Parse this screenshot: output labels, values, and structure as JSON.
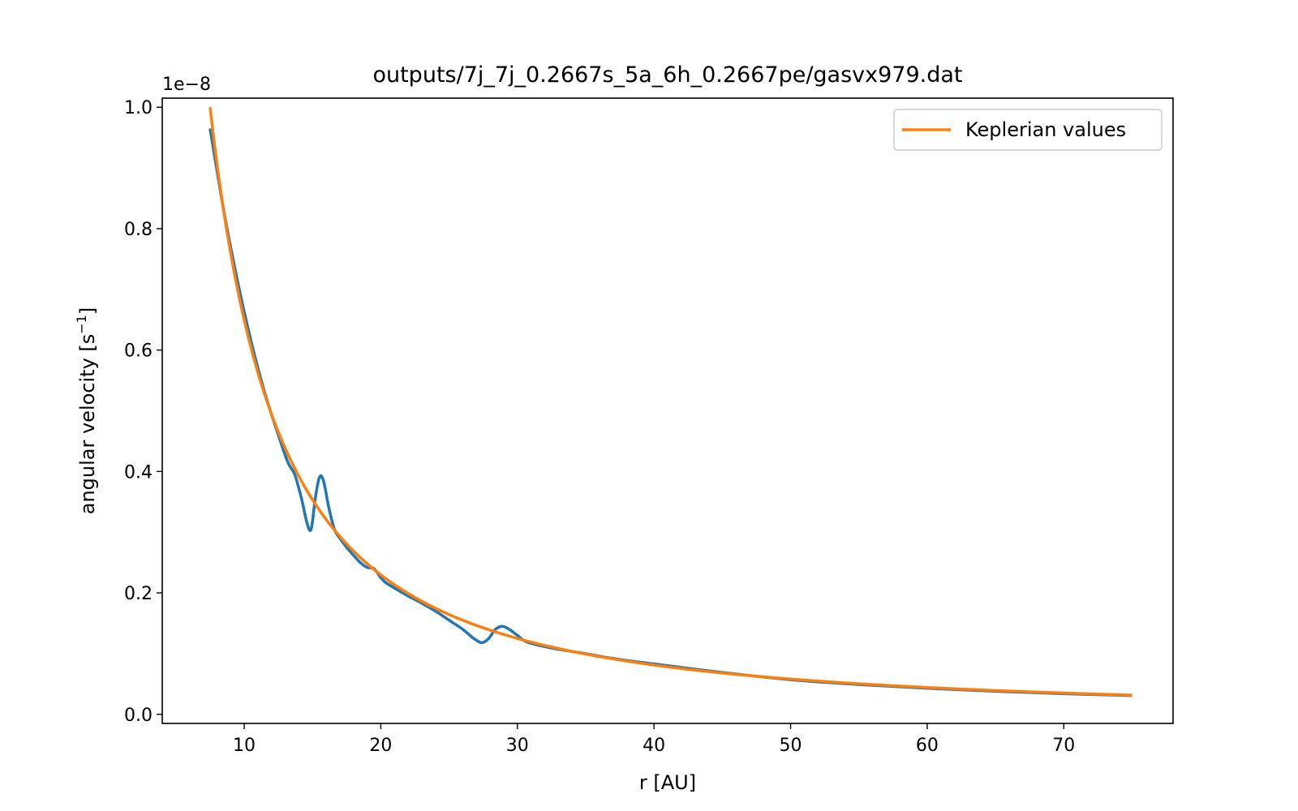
{
  "chart_data": {
    "type": "line",
    "title": "outputs/7j_7j_0.2667s_5a_6h_0.2667pe/gasvx979.dat",
    "xlabel": "r [AU]",
    "ylabel_text": "angular velocity [s",
    "ylabel_sup": "−1",
    "ylabel_close": "]",
    "y_offset_label": "1e−8",
    "xlim": [
      4.0,
      78.0
    ],
    "ylim": [
      -0.015,
      1.015
    ],
    "y_scale": 1e-08,
    "xticks": [
      10,
      20,
      30,
      40,
      50,
      60,
      70
    ],
    "xtick_labels": [
      "10",
      "20",
      "30",
      "40",
      "50",
      "60",
      "70"
    ],
    "yticks": [
      0.0,
      0.2,
      0.4,
      0.6,
      0.8,
      1.0
    ],
    "ytick_labels": [
      "0.0",
      "0.2",
      "0.4",
      "0.6",
      "0.8",
      "1.0"
    ],
    "grid": false,
    "legend_position": "top-right",
    "series": [
      {
        "legend": false,
        "color": "#1f77b4",
        "x": [
          7.5,
          8.5,
          9.5,
          10.5,
          11.5,
          12.5,
          13.2,
          13.7,
          14.2,
          14.6,
          14.9,
          15.2,
          15.5,
          15.8,
          16.2,
          16.6,
          17.0,
          17.5,
          18.0,
          18.5,
          19.0,
          19.5,
          19.9,
          20.3,
          21.0,
          22.0,
          23.0,
          24.0,
          25.0,
          26.0,
          26.8,
          27.4,
          27.9,
          28.4,
          28.9,
          29.4,
          30.0,
          30.6,
          31.5,
          33.0,
          35.0,
          37.0,
          40.0,
          45.0,
          50.0,
          55.0,
          60.0,
          65.0,
          70.0,
          75.0
        ],
        "y": [
          0.965,
          0.83,
          0.715,
          0.615,
          0.53,
          0.46,
          0.415,
          0.395,
          0.355,
          0.315,
          0.305,
          0.355,
          0.39,
          0.385,
          0.34,
          0.305,
          0.29,
          0.275,
          0.262,
          0.25,
          0.242,
          0.24,
          0.228,
          0.218,
          0.208,
          0.195,
          0.183,
          0.17,
          0.155,
          0.14,
          0.125,
          0.118,
          0.125,
          0.14,
          0.145,
          0.14,
          0.13,
          0.12,
          0.114,
          0.107,
          0.1,
          0.092,
          0.083,
          0.069,
          0.057,
          0.049,
          0.043,
          0.038,
          0.034,
          0.031
        ]
      },
      {
        "name": "Keplerian values",
        "legend": true,
        "color": "#ff7f0e",
        "function": "keplerian",
        "coef": 20.54,
        "exponent": -1.5,
        "x_range": [
          7.5,
          75.0
        ]
      }
    ]
  }
}
